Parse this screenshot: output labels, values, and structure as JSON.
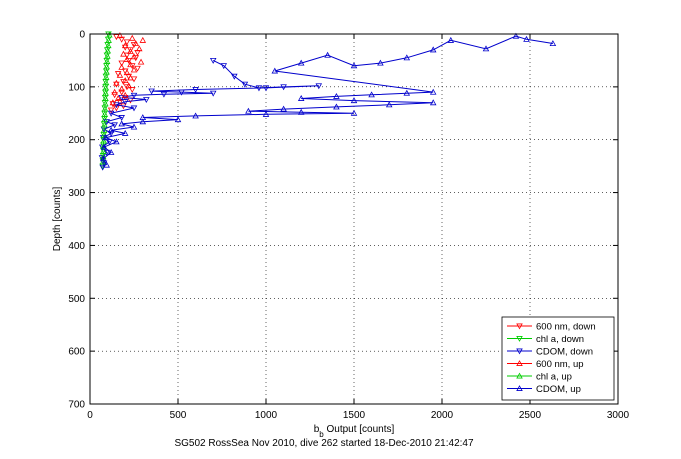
{
  "chart_data": {
    "type": "scatter",
    "title": "",
    "xlabel_main": "b",
    "xlabel_sub": "b",
    "xlabel_rest": " Output [counts]",
    "ylabel": "Depth [counts]",
    "xlim": [
      0,
      3000
    ],
    "ylim": [
      700,
      0
    ],
    "y_reversed": true,
    "grid": true,
    "x_ticks": [
      "0",
      "500",
      "1000",
      "1500",
      "2000",
      "2500",
      "3000"
    ],
    "x_tick_values": [
      0,
      500,
      1000,
      1500,
      2000,
      2500,
      3000
    ],
    "y_ticks": [
      "0",
      "100",
      "200",
      "300",
      "400",
      "500",
      "600",
      "700"
    ],
    "y_tick_values": [
      0,
      100,
      200,
      300,
      400,
      500,
      600,
      700
    ],
    "legend_position": "bottom-right",
    "footer": "SG502 RossSea Nov 2010, dive 262 started 18-Dec-2010 21:42:47",
    "series": [
      {
        "name": "600 nm, down",
        "color": "#ff0000",
        "marker": "triangle-down",
        "line": false,
        "points": [
          [
            150,
            5
          ],
          [
            180,
            10
          ],
          [
            210,
            15
          ],
          [
            250,
            20
          ],
          [
            200,
            25
          ],
          [
            230,
            30
          ],
          [
            270,
            35
          ],
          [
            210,
            40
          ],
          [
            260,
            45
          ],
          [
            220,
            50
          ],
          [
            180,
            55
          ],
          [
            240,
            60
          ],
          [
            270,
            65
          ],
          [
            200,
            70
          ],
          [
            160,
            75
          ],
          [
            220,
            80
          ],
          [
            250,
            85
          ],
          [
            190,
            90
          ],
          [
            150,
            95
          ],
          [
            210,
            100
          ],
          [
            240,
            105
          ],
          [
            180,
            110
          ],
          [
            140,
            115
          ],
          [
            200,
            120
          ],
          [
            230,
            125
          ],
          [
            170,
            128
          ],
          [
            130,
            132
          ],
          [
            190,
            136
          ],
          [
            150,
            140
          ],
          [
            120,
            144
          ]
        ]
      },
      {
        "name": "chl a, down",
        "color": "#00cc00",
        "marker": "triangle-down",
        "line": false,
        "points": [
          [
            105,
            0
          ],
          [
            103,
            10
          ],
          [
            100,
            20
          ],
          [
            98,
            30
          ],
          [
            96,
            40
          ],
          [
            95,
            50
          ],
          [
            93,
            60
          ],
          [
            92,
            70
          ],
          [
            90,
            80
          ],
          [
            89,
            90
          ],
          [
            88,
            100
          ],
          [
            87,
            110
          ],
          [
            86,
            120
          ],
          [
            85,
            130
          ],
          [
            84,
            140
          ],
          [
            83,
            150
          ],
          [
            82,
            160
          ],
          [
            80,
            170
          ],
          [
            79,
            180
          ],
          [
            78,
            190
          ],
          [
            77,
            200
          ],
          [
            76,
            210
          ],
          [
            75,
            220
          ],
          [
            74,
            230
          ],
          [
            73,
            240
          ],
          [
            72,
            250
          ]
        ]
      },
      {
        "name": "CDOM, down",
        "color": "#0000cc",
        "marker": "triangle-down",
        "line": true,
        "points": [
          [
            700,
            50
          ],
          [
            760,
            60
          ],
          [
            820,
            80
          ],
          [
            880,
            95
          ],
          [
            960,
            102
          ],
          [
            1100,
            100
          ],
          [
            1300,
            98
          ],
          [
            1000,
            102
          ],
          [
            600,
            105
          ],
          [
            350,
            108
          ],
          [
            520,
            110
          ],
          [
            700,
            112
          ],
          [
            420,
            114
          ],
          [
            250,
            116
          ],
          [
            180,
            120
          ],
          [
            320,
            124
          ],
          [
            200,
            128
          ],
          [
            150,
            134
          ],
          [
            250,
            140
          ],
          [
            120,
            150
          ],
          [
            180,
            158
          ],
          [
            95,
            166
          ],
          [
            140,
            172
          ],
          [
            80,
            180
          ],
          [
            120,
            188
          ],
          [
            75,
            196
          ],
          [
            110,
            204
          ],
          [
            70,
            214
          ],
          [
            95,
            224
          ],
          [
            68,
            234
          ],
          [
            80,
            244
          ],
          [
            72,
            252
          ]
        ]
      },
      {
        "name": "600 nm, up",
        "color": "#ff0000",
        "marker": "triangle-up",
        "line": false,
        "points": [
          [
            170,
            3
          ],
          [
            240,
            8
          ],
          [
            300,
            12
          ],
          [
            260,
            18
          ],
          [
            200,
            22
          ],
          [
            280,
            28
          ],
          [
            230,
            33
          ],
          [
            190,
            38
          ],
          [
            250,
            43
          ],
          [
            210,
            48
          ],
          [
            290,
            53
          ],
          [
            230,
            58
          ],
          [
            180,
            63
          ],
          [
            250,
            68
          ],
          [
            210,
            73
          ],
          [
            170,
            78
          ],
          [
            230,
            83
          ],
          [
            200,
            88
          ],
          [
            150,
            93
          ],
          [
            220,
            98
          ],
          [
            180,
            104
          ],
          [
            140,
            110
          ],
          [
            200,
            116
          ],
          [
            160,
            122
          ],
          [
            130,
            130
          ]
        ]
      },
      {
        "name": "chl a, up",
        "color": "#00cc00",
        "marker": "triangle-up",
        "line": false,
        "points": [
          [
            110,
            2
          ],
          [
            106,
            12
          ],
          [
            104,
            22
          ],
          [
            101,
            32
          ],
          [
            99,
            42
          ],
          [
            97,
            52
          ],
          [
            95,
            62
          ],
          [
            94,
            72
          ],
          [
            92,
            82
          ],
          [
            91,
            92
          ],
          [
            90,
            102
          ],
          [
            89,
            112
          ],
          [
            88,
            122
          ],
          [
            87,
            132
          ],
          [
            85,
            142
          ],
          [
            84,
            152
          ],
          [
            83,
            162
          ],
          [
            82,
            172
          ],
          [
            80,
            182
          ],
          [
            79,
            192
          ],
          [
            78,
            202
          ],
          [
            77,
            212
          ],
          [
            76,
            222
          ],
          [
            75,
            232
          ],
          [
            74,
            242
          ]
        ]
      },
      {
        "name": "CDOM, up",
        "color": "#0000cc",
        "marker": "triangle-up",
        "line": true,
        "points": [
          [
            2630,
            18
          ],
          [
            2480,
            10
          ],
          [
            2420,
            4
          ],
          [
            2250,
            28
          ],
          [
            2050,
            12
          ],
          [
            1950,
            30
          ],
          [
            1800,
            45
          ],
          [
            1650,
            55
          ],
          [
            1500,
            60
          ],
          [
            1350,
            40
          ],
          [
            1200,
            55
          ],
          [
            1050,
            70
          ],
          [
            1950,
            110
          ],
          [
            1800,
            112
          ],
          [
            1600,
            115
          ],
          [
            1400,
            118
          ],
          [
            1200,
            122
          ],
          [
            1500,
            126
          ],
          [
            1950,
            130
          ],
          [
            1700,
            134
          ],
          [
            1400,
            138
          ],
          [
            1100,
            142
          ],
          [
            900,
            146
          ],
          [
            1200,
            148
          ],
          [
            1500,
            150
          ],
          [
            1000,
            152
          ],
          [
            600,
            155
          ],
          [
            300,
            158
          ],
          [
            500,
            162
          ],
          [
            300,
            166
          ],
          [
            180,
            170
          ],
          [
            250,
            176
          ],
          [
            120,
            182
          ],
          [
            200,
            188
          ],
          [
            90,
            196
          ],
          [
            150,
            204
          ],
          [
            80,
            214
          ],
          [
            120,
            224
          ],
          [
            75,
            236
          ],
          [
            95,
            248
          ]
        ]
      }
    ]
  }
}
